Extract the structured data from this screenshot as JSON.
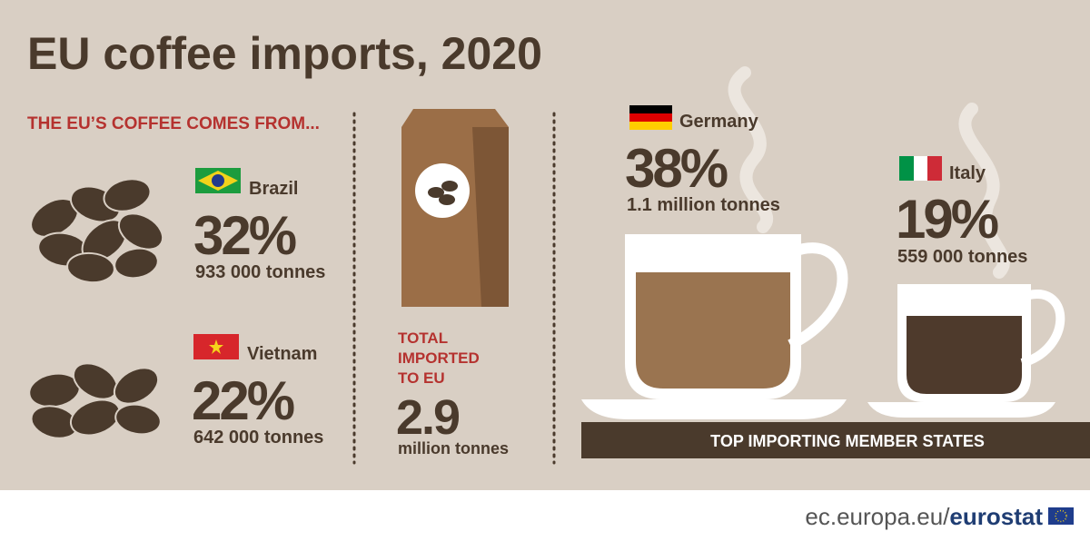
{
  "title": "EU coffee imports, 2020",
  "sources": {
    "heading": "THE EU’S COFFEE COMES FROM...",
    "items": [
      {
        "country": "Brazil",
        "share": "32%",
        "tonnes": "933 000 tonnes"
      },
      {
        "country": "Vietnam",
        "share": "22%",
        "tonnes": "642 000 tonnes"
      }
    ]
  },
  "total": {
    "label_lines": [
      "TOTAL",
      "IMPORTED",
      "TO EU"
    ],
    "value": "2.9",
    "unit": "million tonnes"
  },
  "importers": {
    "items": [
      {
        "country": "Germany",
        "share": "38%",
        "tonnes": "1.1 million tonnes"
      },
      {
        "country": "Italy",
        "share": "19%",
        "tonnes": "559 000 tonnes"
      }
    ],
    "caption": "TOP IMPORTING MEMBER STATES"
  },
  "footer": {
    "site": "ec.europa.eu/",
    "brand": "eurostat"
  }
}
